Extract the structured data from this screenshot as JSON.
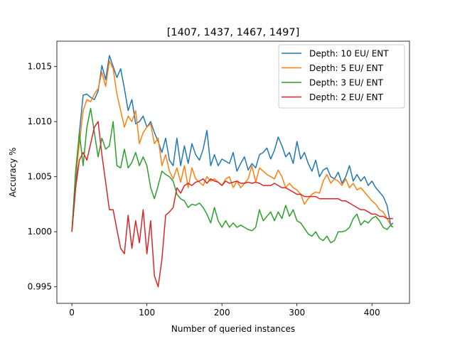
{
  "chart_data": {
    "type": "line",
    "title": "[1407, 1437, 1467, 1497]",
    "xlabel": "Number of queried instances",
    "ylabel": "Accuracy %",
    "xlim": [
      -20,
      450
    ],
    "ylim": [
      0.9935,
      1.0173
    ],
    "xticks": [
      0,
      100,
      200,
      300,
      400
    ],
    "yticks": [
      0.995,
      1.0,
      1.005,
      1.01,
      1.015
    ],
    "ytick_labels": [
      "0.995",
      "1.000",
      "1.005",
      "1.010",
      "1.015"
    ],
    "grid": false,
    "legend_position": "top-right",
    "series": [
      {
        "name": "Depth: 10 EU/ ENT",
        "color": "#1f77b4",
        "x": [
          0,
          5,
          10,
          15,
          20,
          25,
          30,
          35,
          40,
          45,
          50,
          55,
          60,
          65,
          70,
          75,
          80,
          85,
          90,
          95,
          100,
          105,
          110,
          115,
          120,
          125,
          130,
          135,
          140,
          145,
          150,
          155,
          160,
          165,
          170,
          175,
          180,
          185,
          190,
          195,
          200,
          205,
          210,
          215,
          220,
          225,
          230,
          235,
          240,
          245,
          250,
          255,
          260,
          265,
          270,
          275,
          280,
          285,
          290,
          295,
          300,
          305,
          310,
          315,
          320,
          325,
          330,
          335,
          340,
          345,
          350,
          355,
          360,
          365,
          370,
          375,
          380,
          385,
          390,
          395,
          400,
          405,
          410,
          415,
          420,
          425,
          428
        ],
        "values": [
          1.0,
          1.004,
          1.009,
          1.0124,
          1.0125,
          1.0122,
          1.012,
          1.0128,
          1.0151,
          1.0138,
          1.016,
          1.015,
          1.014,
          1.0148,
          1.013,
          1.011,
          1.012,
          1.0098,
          1.01,
          1.0105,
          1.0095,
          1.01,
          1.009,
          1.0082,
          1.0072,
          1.0085,
          1.0065,
          1.006,
          1.0085,
          1.006,
          1.0078,
          1.0062,
          1.008,
          1.007,
          1.0065,
          1.0075,
          1.0092,
          1.006,
          1.007,
          1.006,
          1.0066,
          1.0064,
          1.0062,
          1.0072,
          1.0055,
          1.0062,
          1.0068,
          1.0056,
          1.0062,
          1.0058,
          1.007,
          1.0072,
          1.0076,
          1.0066,
          1.0074,
          1.0086,
          1.0078,
          1.0068,
          1.0072,
          1.0062,
          1.0082,
          1.0066,
          1.0072,
          1.0062,
          1.0055,
          1.0065,
          1.005,
          1.0056,
          1.0058,
          1.005,
          1.0048,
          1.0054,
          1.0044,
          1.005,
          1.006,
          1.0046,
          1.0052,
          1.0046,
          1.005,
          1.0042,
          1.0046,
          1.004,
          1.0036,
          1.0032,
          1.0024,
          1.0006,
          1.0008
        ]
      },
      {
        "name": "Depth: 5 EU/ ENT",
        "color": "#ff7f0e",
        "x": [
          0,
          5,
          10,
          15,
          20,
          25,
          30,
          35,
          40,
          45,
          50,
          55,
          60,
          65,
          70,
          75,
          80,
          85,
          90,
          95,
          100,
          105,
          110,
          115,
          120,
          125,
          130,
          135,
          140,
          145,
          150,
          155,
          160,
          165,
          170,
          175,
          180,
          185,
          190,
          195,
          200,
          205,
          210,
          215,
          220,
          225,
          230,
          235,
          240,
          245,
          250,
          255,
          260,
          265,
          270,
          275,
          280,
          285,
          290,
          295,
          300,
          305,
          310,
          315,
          320,
          325,
          330,
          335,
          340,
          345,
          350,
          355,
          360,
          365,
          370,
          375,
          380,
          385,
          390,
          395,
          400,
          405,
          410,
          415,
          420,
          425,
          428
        ],
        "values": [
          1.0,
          1.005,
          1.008,
          1.011,
          1.012,
          1.0118,
          1.0125,
          1.013,
          1.0145,
          1.0132,
          1.0155,
          1.0148,
          1.0125,
          1.011,
          1.0095,
          1.0105,
          1.01,
          1.011,
          1.008,
          1.009,
          1.0095,
          1.0098,
          1.008,
          1.0085,
          1.006,
          1.007,
          1.0055,
          1.0048,
          1.0058,
          1.0045,
          1.006,
          1.004,
          1.0058,
          1.0048,
          1.0045,
          1.0042,
          1.005,
          1.0046,
          1.0048,
          1.0045,
          1.0042,
          1.0048,
          1.005,
          1.004,
          1.0046,
          1.004,
          1.0044,
          1.0048,
          1.006,
          1.0045,
          1.0058,
          1.0055,
          1.0052,
          1.005,
          1.0048,
          1.0056,
          1.005,
          1.004,
          1.0044,
          1.004,
          1.0038,
          1.0034,
          1.0025,
          1.003,
          1.0034,
          1.0036,
          1.0035,
          1.0046,
          1.0052,
          1.0044,
          1.0048,
          1.0046,
          1.0042,
          1.0048,
          1.004,
          1.0044,
          1.0038,
          1.004,
          1.0036,
          1.0032,
          1.0028,
          1.0025,
          1.002,
          1.0018,
          1.0012,
          1.0006,
          1.0004
        ]
      },
      {
        "name": "Depth: 3 EU/ ENT",
        "color": "#2ca02c",
        "x": [
          0,
          5,
          10,
          15,
          20,
          25,
          30,
          35,
          40,
          45,
          50,
          55,
          60,
          65,
          70,
          75,
          80,
          85,
          90,
          95,
          100,
          105,
          110,
          115,
          120,
          125,
          130,
          135,
          140,
          145,
          150,
          155,
          160,
          165,
          170,
          175,
          180,
          185,
          190,
          195,
          200,
          205,
          210,
          215,
          220,
          225,
          230,
          235,
          240,
          245,
          250,
          255,
          260,
          265,
          270,
          275,
          280,
          285,
          290,
          295,
          300,
          305,
          310,
          315,
          320,
          325,
          330,
          335,
          340,
          345,
          350,
          355,
          360,
          365,
          370,
          375,
          380,
          385,
          390,
          395,
          400,
          405,
          410,
          415,
          420,
          425,
          428
        ],
        "values": [
          1.0,
          1.0055,
          1.009,
          1.006,
          1.0095,
          1.0112,
          1.009,
          1.0068,
          1.0085,
          1.0075,
          1.0078,
          1.01,
          1.006,
          1.0058,
          1.0075,
          1.0058,
          1.0063,
          1.0072,
          1.006,
          1.0068,
          1.006,
          1.004,
          1.003,
          1.0042,
          1.0055,
          1.0052,
          1.005,
          1.0046,
          1.0034,
          1.003,
          1.0028,
          1.0022,
          1.0025,
          1.0024,
          1.0026,
          1.0022,
          1.0016,
          1.0008,
          1.0022,
          1.001,
          1.0004,
          1.001,
          1.0004,
          1.0008,
          1.0004,
          1.0006,
          1.0004,
          1.0002,
          1.0001,
          1.0004,
          1.002,
          1.001,
          1.0014,
          1.0018,
          1.001,
          1.0018,
          1.0012,
          1.0024,
          1.0014,
          1.002,
          1.001,
          1.0008,
          1.0003,
          0.9998,
          0.9996,
          1.0,
          0.9994,
          0.9992,
          0.9996,
          0.999,
          0.9992,
          1.0,
          1.0,
          1.0001,
          1.0004,
          1.0012,
          1.0016,
          1.0006,
          1.001,
          1.0008,
          1.0012,
          1.0014,
          1.001,
          1.0004,
          1.0002,
          1.0006,
          1.0004
        ]
      },
      {
        "name": "Depth: 2 EU/ ENT",
        "color": "#d62728",
        "x": [
          0,
          5,
          10,
          15,
          20,
          25,
          30,
          35,
          40,
          45,
          50,
          55,
          60,
          65,
          70,
          75,
          80,
          85,
          90,
          95,
          100,
          105,
          110,
          115,
          120,
          125,
          130,
          135,
          140,
          145,
          150,
          155,
          160,
          165,
          170,
          175,
          180,
          185,
          190,
          195,
          200,
          205,
          210,
          215,
          220,
          225,
          230,
          235,
          240,
          245,
          250,
          255,
          260,
          265,
          270,
          275,
          280,
          285,
          290,
          295,
          300,
          305,
          310,
          315,
          320,
          325,
          330,
          335,
          340,
          345,
          350,
          355,
          360,
          365,
          370,
          375,
          380,
          385,
          390,
          395,
          400,
          405,
          410,
          415,
          420,
          425,
          428
        ],
        "values": [
          1.0,
          1.004,
          1.0065,
          1.0072,
          1.0065,
          1.008,
          1.0095,
          1.01,
          1.007,
          1.0045,
          1.002,
          1.002,
          1.0002,
          0.9985,
          0.998,
          1.0015,
          0.9985,
          1.001,
          0.999,
          1.002,
          0.998,
          1.001,
          0.996,
          0.995,
          0.9975,
          1.0015,
          1.0018,
          1.0022,
          1.004,
          1.0035,
          1.0042,
          1.0044,
          1.0042,
          1.0045,
          1.0046,
          1.0048,
          1.0044,
          1.0048,
          1.0046,
          1.0045,
          1.0042,
          1.0046,
          1.0044,
          1.0045,
          1.0046,
          1.0044,
          1.0044,
          1.0045,
          1.0044,
          1.0045,
          1.0044,
          1.0042,
          1.0042,
          1.0042,
          1.0044,
          1.0042,
          1.004,
          1.004,
          1.0038,
          1.0036,
          1.0034,
          1.0034,
          1.0032,
          1.0032,
          1.0032,
          1.0032,
          1.003,
          1.003,
          1.003,
          1.003,
          1.003,
          1.003,
          1.0028,
          1.0028,
          1.0026,
          1.0024,
          1.0022,
          1.002,
          1.002,
          1.0018,
          1.0016,
          1.0016,
          1.0014,
          1.0014,
          1.0012,
          1.0012,
          1.0012
        ]
      }
    ]
  }
}
